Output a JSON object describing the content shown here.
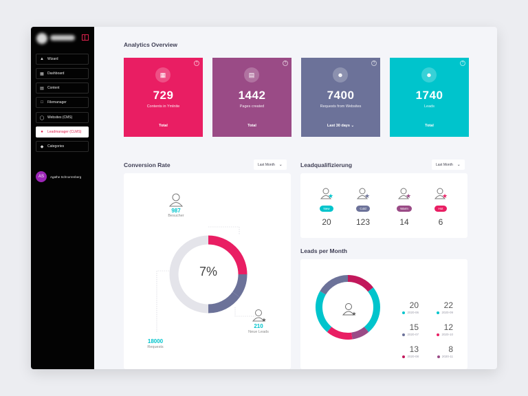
{
  "sidebar": {
    "items": [
      {
        "label": "Wizard",
        "icon": "graduation-cap-icon"
      },
      {
        "label": "Dashboard",
        "icon": "dashboard-grid-icon"
      },
      {
        "label": "Content",
        "icon": "content-icon"
      },
      {
        "label": "Filemanager",
        "icon": "file-icon"
      },
      {
        "label": "Websites (CMS)",
        "icon": "globe-icon"
      },
      {
        "label": "Leadmanager (CLMS)",
        "icon": "users-icon",
        "active": true
      },
      {
        "label": "Categories",
        "icon": "tag-icon"
      }
    ],
    "user": {
      "initials": "AS",
      "name": "Agathe Schnorrenberg"
    }
  },
  "analytics": {
    "title": "Analytics Overview",
    "cards": [
      {
        "value": "729",
        "label": "Contents in Ymlnite",
        "footer": "Total",
        "color": "#e91e63",
        "icon": "layout-icon"
      },
      {
        "value": "1442",
        "label": "Pages created",
        "footer": "Total",
        "color": "#9a4b86",
        "icon": "pages-icon"
      },
      {
        "value": "7400",
        "label": "Requests from Websites",
        "footer": "Last 30 days",
        "color": "#6c7299",
        "icon": "user-icon"
      },
      {
        "value": "1740",
        "label": "Leads",
        "footer": "Total",
        "color": "#00c4cc",
        "icon": "lead-user-icon"
      }
    ],
    "help": "?"
  },
  "conversion": {
    "title": "Conversion Rate",
    "dropdown": "Last Month",
    "percent": "7%",
    "visitors_value": "987",
    "visitors_label": "Besucher",
    "leads_value": "210",
    "leads_label": "Neue Leads",
    "requests_value": "18000",
    "requests_label": "Requests",
    "segments": [
      {
        "fraction": 0.25,
        "color": "#e91e63"
      },
      {
        "fraction": 0.1,
        "color": "#6c7299"
      },
      {
        "fraction": 0.15,
        "color": "#6c7299"
      },
      {
        "fraction": 0.5,
        "color": "#e4e4ea"
      }
    ]
  },
  "leadqual": {
    "title": "Leadqualifizierung",
    "dropdown": "Last Month",
    "items": [
      {
        "badge": "New",
        "value": "20",
        "color": "#00c4cc"
      },
      {
        "badge": "Cold",
        "value": "123",
        "color": "#6c7299"
      },
      {
        "badge": "Warm",
        "value": "14",
        "color": "#9a4b86"
      },
      {
        "badge": "Hot",
        "value": "6",
        "color": "#e91e63"
      }
    ]
  },
  "leads_per_month": {
    "title": "Leads per Month",
    "entries": [
      {
        "value": "20",
        "date": "2020-06",
        "color": "#00c4cc"
      },
      {
        "value": "22",
        "date": "2020-09",
        "color": "#00c4cc"
      },
      {
        "value": "15",
        "date": "2020-07",
        "color": "#6c7299"
      },
      {
        "value": "12",
        "date": "2020-10",
        "color": "#e91e63"
      },
      {
        "value": "13",
        "date": "2020-08",
        "color": "#c2185b"
      },
      {
        "value": "8",
        "date": "2020-11",
        "color": "#9a4b86"
      }
    ]
  }
}
